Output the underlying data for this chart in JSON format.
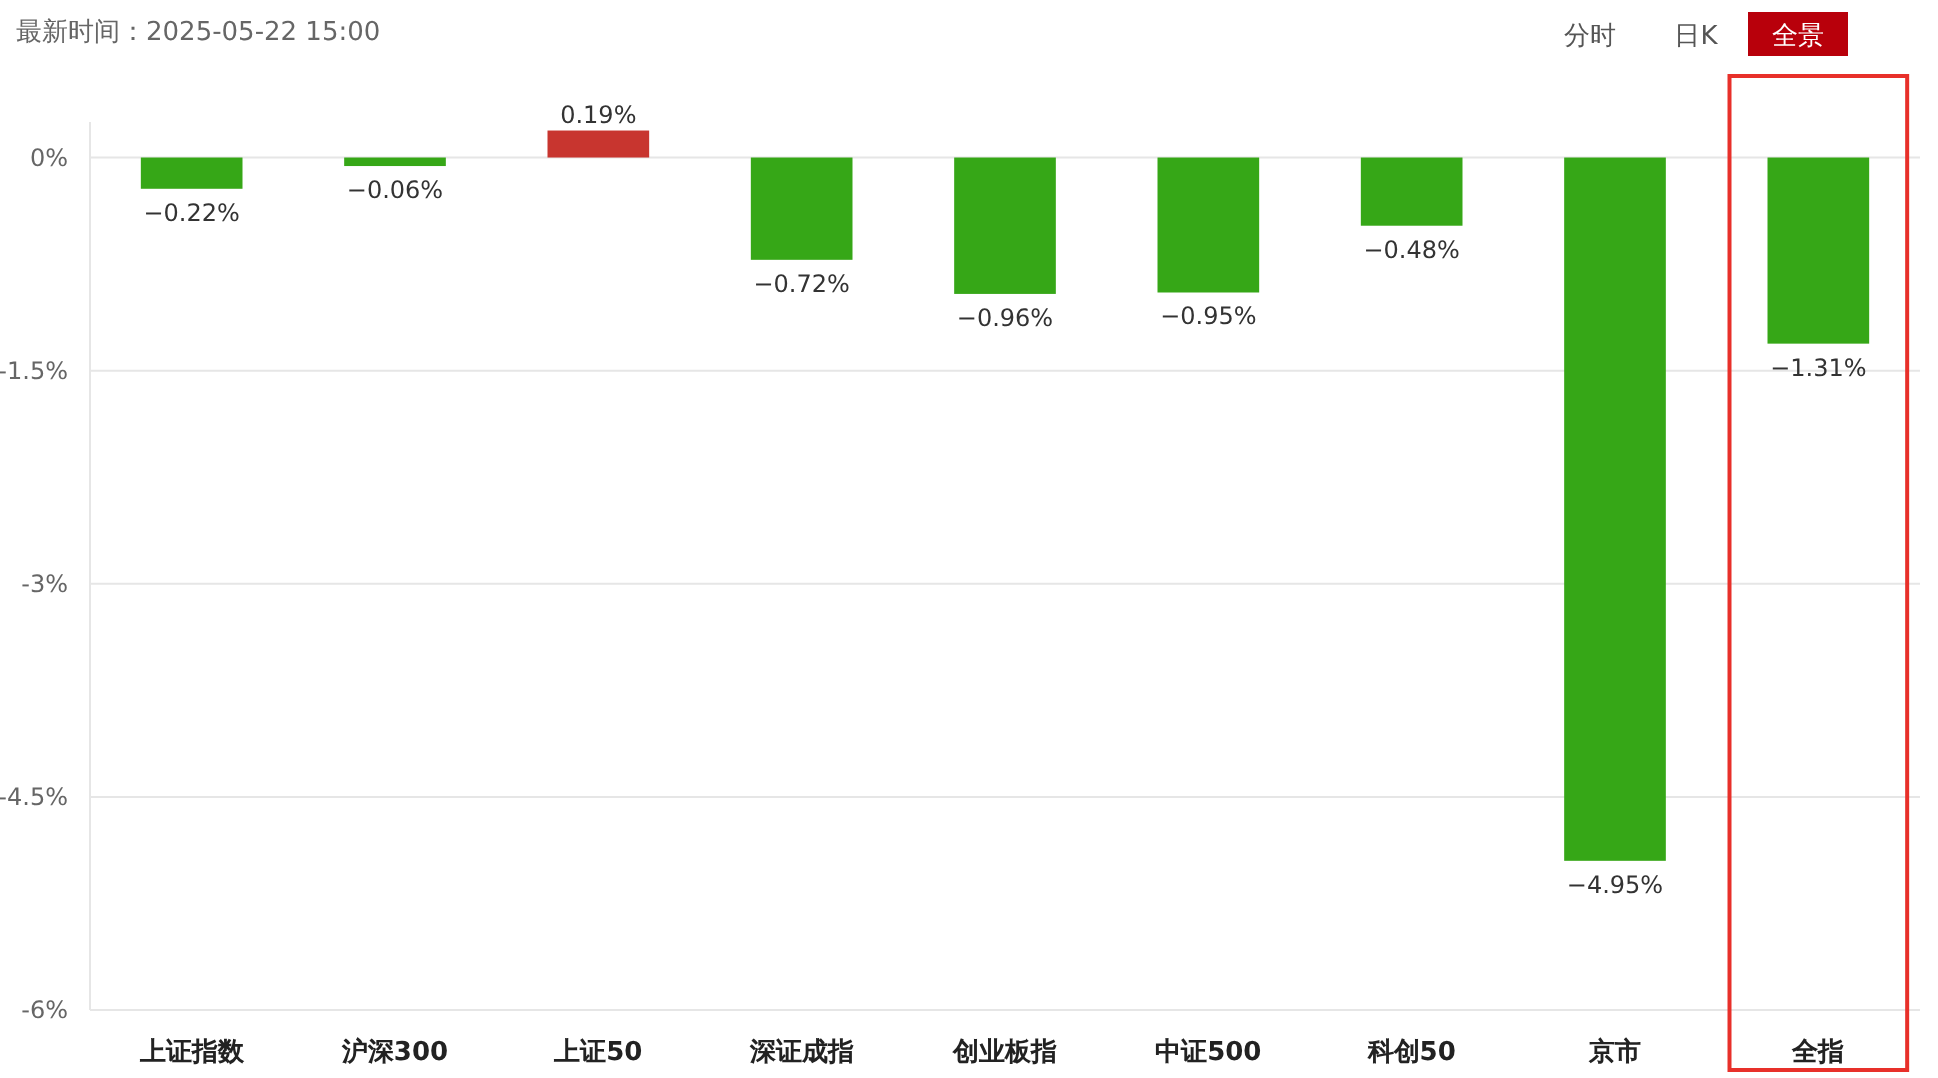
{
  "chart_data": {
    "type": "bar",
    "title": "最新时间：2025-05-22 15:00",
    "annotations": [
      "分时",
      "日K",
      "全景"
    ],
    "categories": [
      "上证指数",
      "沪深300",
      "上证50",
      "深证成指",
      "创业板指",
      "中证500",
      "科创50",
      "京市",
      "全指"
    ],
    "values": [
      -0.22,
      -0.06,
      0.19,
      -0.72,
      -0.96,
      -0.95,
      -0.48,
      -4.95,
      -1.31
    ],
    "colors": [
      "#36a717",
      "#36a717",
      "#c8352f",
      "#36a717",
      "#36a717",
      "#36a717",
      "#36a717",
      "#36a717",
      "#36a717"
    ],
    "value_labels": [
      "−0.22%",
      "−0.06%",
      "0.19%",
      "−0.72%",
      "−0.96%",
      "−0.95%",
      "−0.48%",
      "−4.95%",
      "−1.31%"
    ],
    "ylim": [
      -6,
      0.25
    ],
    "yticks": [
      {
        "value": 0,
        "label": "0%"
      },
      {
        "value": -1.5,
        "label": "-1.5%"
      },
      {
        "value": -3,
        "label": "-3%"
      },
      {
        "value": -4.5,
        "label": "-4.5%"
      },
      {
        "value": -6,
        "label": "-6%"
      }
    ],
    "grid": "y"
  }
}
